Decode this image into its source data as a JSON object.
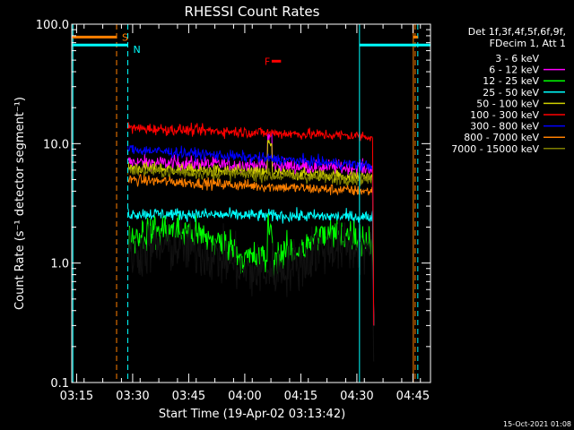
{
  "chart_data": {
    "type": "line",
    "title": "RHESSI Count Rates",
    "xlabel": "Start Time (19-Apr-02 03:13:42)",
    "ylabel": "Count Rate (s⁻¹ detector segment⁻¹)",
    "y_scale": "log",
    "ylim": [
      0.1,
      100
    ],
    "y_ticks": [
      {
        "value": 0.1,
        "label": "0.1"
      },
      {
        "value": 1,
        "label": "1.0"
      },
      {
        "value": 10,
        "label": "10.0"
      },
      {
        "value": 100,
        "label": "100.0"
      }
    ],
    "xlim_minutes_after_0313_42": [
      0,
      96
    ],
    "x_ticks": [
      {
        "t": 1.3,
        "label": "03:15"
      },
      {
        "t": 16.3,
        "label": "03:30"
      },
      {
        "t": 31.3,
        "label": "03:45"
      },
      {
        "t": 46.3,
        "label": "04:00"
      },
      {
        "t": 61.3,
        "label": "04:15"
      },
      {
        "t": 76.3,
        "label": "04:30"
      },
      {
        "t": 91.3,
        "label": "04:45"
      }
    ],
    "data_start": 15.0,
    "data_end": 80.5,
    "legend_header": [
      "Det 1f,3f,4f,5f,6f,9f,",
      "FDecim 1, Att 1"
    ],
    "legend_placement": "right",
    "series": [
      {
        "name": "3 - 6 keV",
        "color": "#000000",
        "level": 1.15,
        "noise": 0.22,
        "trend": 0.0
      },
      {
        "name": "6 - 12 keV",
        "color": "#ff00ff",
        "level": 7.0,
        "noise": 0.06,
        "trend": -0.05
      },
      {
        "name": "12 - 25 keV",
        "color": "#00ff00",
        "level": 1.6,
        "noise": 0.14,
        "trend": -0.05
      },
      {
        "name": "25 - 50 keV",
        "color": "#00ffff",
        "level": 2.6,
        "noise": 0.05,
        "trend": -0.03
      },
      {
        "name": "50 - 100 keV",
        "color": "#d0d000",
        "level": 6.3,
        "noise": 0.05,
        "trend": -0.08
      },
      {
        "name": "100 - 300 keV",
        "color": "#ff0000",
        "level": 13.5,
        "noise": 0.045,
        "trend": -0.07
      },
      {
        "name": "300 - 800 keV",
        "color": "#0000ff",
        "level": 9.0,
        "noise": 0.045,
        "trend": -0.14
      },
      {
        "name": "800 - 7000 keV",
        "color": "#ff8000",
        "level": 5.0,
        "noise": 0.045,
        "trend": -0.1
      },
      {
        "name": "7000 - 15000 keV",
        "color": "#808000",
        "level": 6.0,
        "noise": 0.05,
        "trend": -0.08
      }
    ],
    "flags": [
      {
        "label": "S",
        "color": "#ff8000",
        "x_start": 0,
        "x_end": 12.0,
        "y": 78,
        "vline_style": "dashed",
        "vline_x": 12.0
      },
      {
        "label": "N",
        "color": "#00ffff",
        "x_start": 0,
        "x_end": 15.0,
        "y": 67,
        "vline_style": "dashed",
        "vline_x": 15.0
      },
      {
        "label": "F",
        "color": "#ff0000",
        "x_start": 53.5,
        "x_end": 56.0,
        "y": 49
      }
    ],
    "extra_vlines": [
      {
        "x": 0.3,
        "color": "#00ffff",
        "style": "solid"
      },
      {
        "x": 77.0,
        "color": "#00ffff",
        "style": "solid"
      },
      {
        "x": 91.4,
        "color": "#ff8000",
        "style": "solid"
      },
      {
        "x": 92.6,
        "color": "#00ffff",
        "style": "dashed"
      },
      {
        "x": 91.9,
        "color": "#ff8000",
        "style": "dashed"
      }
    ],
    "extra_hbars": [
      {
        "color": "#00ffff",
        "x_start": 77.0,
        "x_end": 96,
        "y": 67
      },
      {
        "color": "#ff8000",
        "x_start": 91.4,
        "x_end": 92.6,
        "y": 78
      }
    ]
  },
  "footer": {
    "timestamp": "15-Oct-2021 01:08"
  }
}
